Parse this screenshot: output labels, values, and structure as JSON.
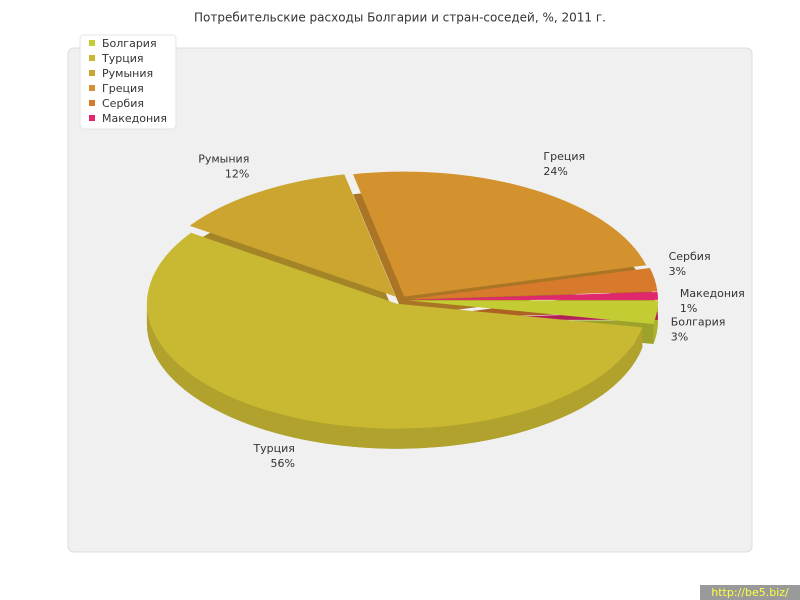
{
  "chart_data": {
    "type": "pie3d",
    "title": "Потребительские расходы Болгарии и стран-соседей, %, 2011 г.",
    "categories": [
      "Болгария",
      "Турция",
      "Румыния",
      "Греция",
      "Сербия",
      "Македония"
    ],
    "values": [
      3,
      56,
      12,
      24,
      3,
      1
    ],
    "value_labels": [
      "3%",
      "56%",
      "12%",
      "24%",
      "3%",
      "1%"
    ],
    "colors": [
      "#c4cc34",
      "#c8b832",
      "#cca530",
      "#d4922e",
      "#d87a2c",
      "#e0286e"
    ],
    "legend": "top-left"
  },
  "watermark": "http://be5.biz/"
}
